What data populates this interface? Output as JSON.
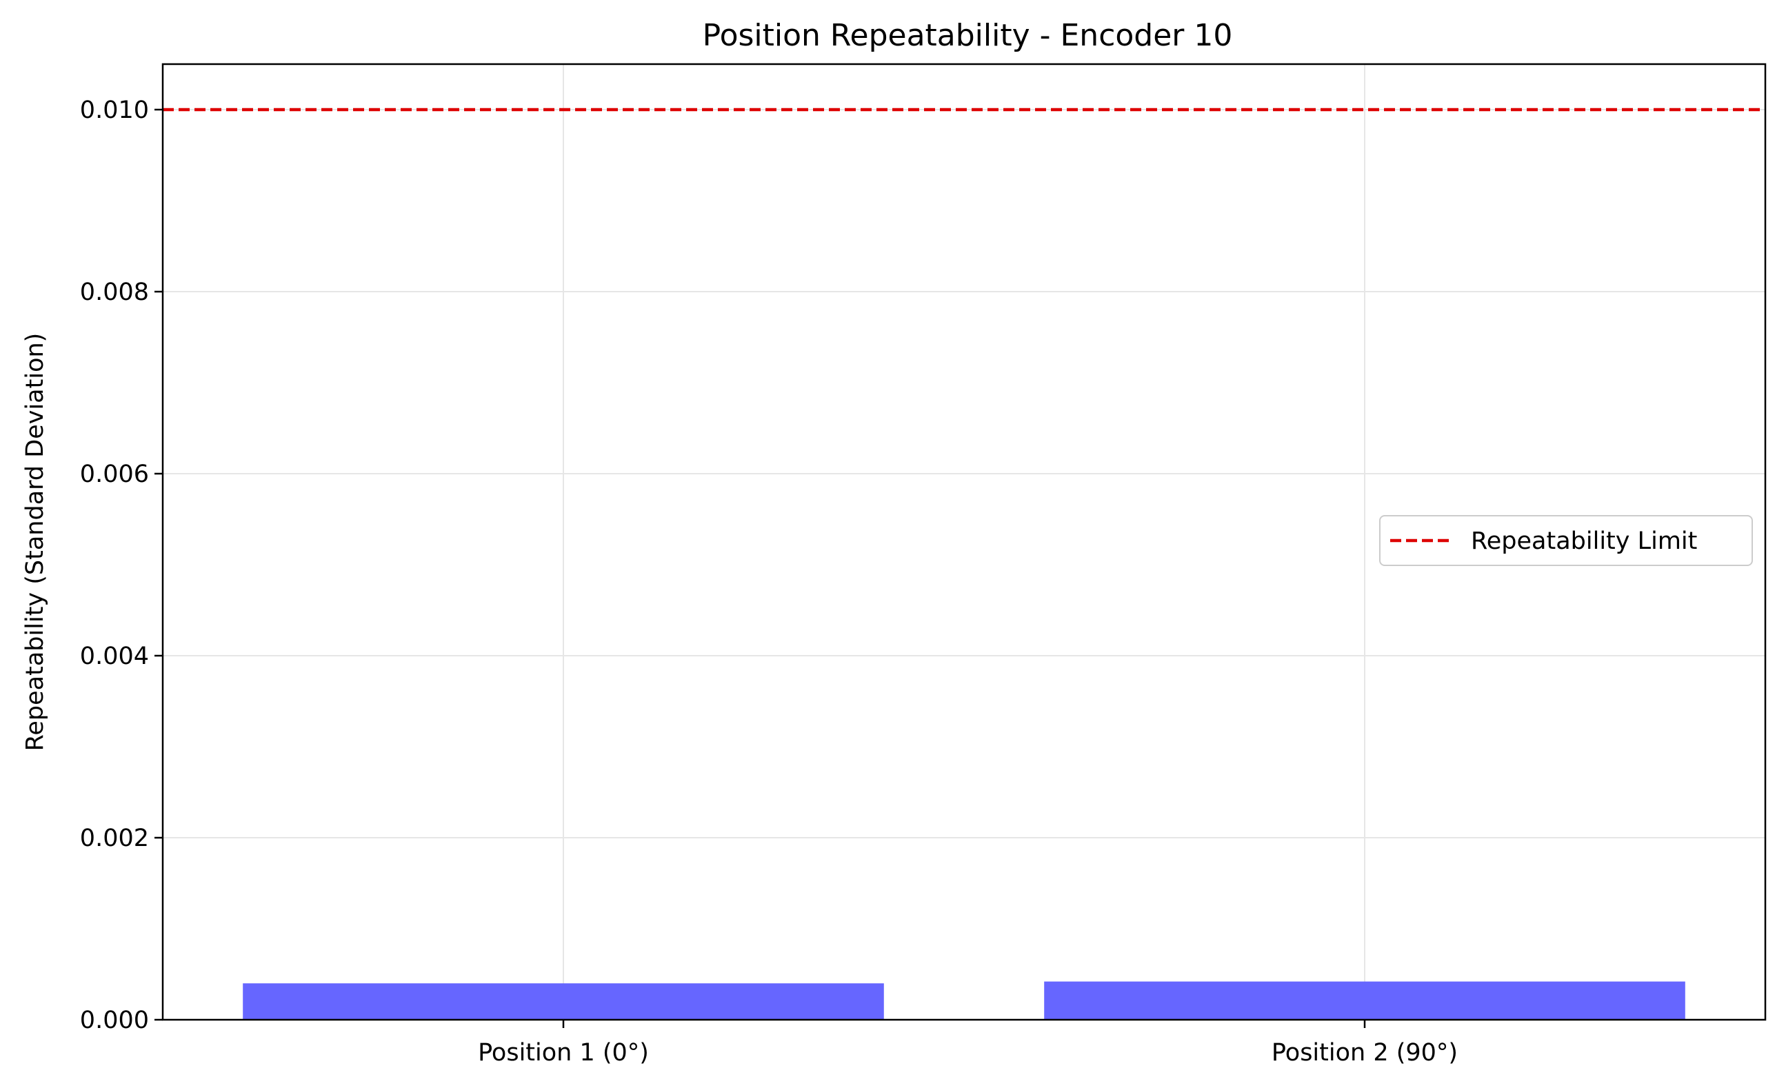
{
  "chart_data": {
    "type": "bar",
    "title": "Position Repeatability - Encoder 10",
    "xlabel": "",
    "ylabel": "Repeatability (Standard Deviation)",
    "categories": [
      "Position 1 (0°)",
      "Position 2 (90°)"
    ],
    "values": [
      0.0004,
      0.00042
    ],
    "ylim": [
      0,
      0.0105
    ],
    "yticks": [
      0.0,
      0.002,
      0.004,
      0.006,
      0.008,
      0.01
    ],
    "ytick_labels": [
      "0.000",
      "0.002",
      "0.004",
      "0.006",
      "0.008",
      "0.010"
    ],
    "grid": true,
    "bar_color": "#6666ff",
    "reference_line": {
      "label": "Repeatability Limit",
      "value": 0.01,
      "color": "#dd0000",
      "style": "dashed"
    },
    "legend": {
      "position": "center-right",
      "entries": [
        "Repeatability Limit"
      ]
    }
  }
}
